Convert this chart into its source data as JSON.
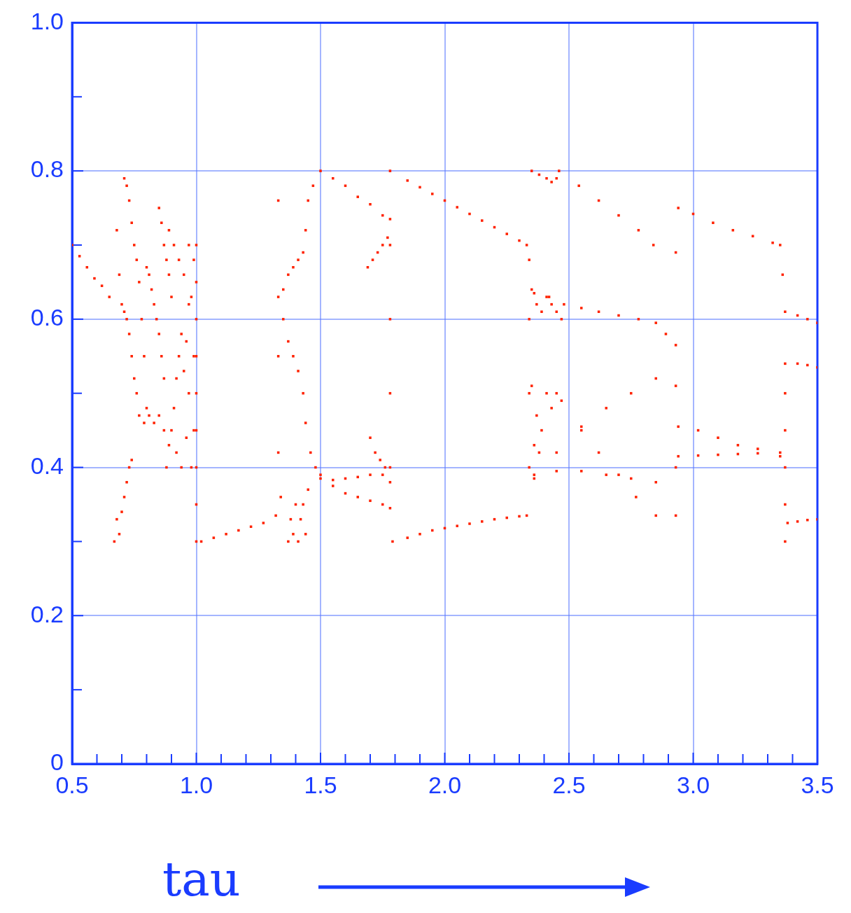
{
  "chart_data": {
    "type": "scatter",
    "xlabel": "tau",
    "color": "#ff2200",
    "marker": "square",
    "grid": true,
    "xlim": [
      0.5,
      3.5
    ],
    "ylim": [
      0,
      1
    ],
    "xticks": [
      0.5,
      {
        "value": 0.6,
        "label": null
      },
      {
        "value": 0.7,
        "label": null
      },
      {
        "value": 0.8,
        "label": null
      },
      {
        "value": 0.9,
        "label": null
      },
      {
        "value": 1,
        "label": "1.0"
      },
      {
        "value": 1.1,
        "label": null
      },
      {
        "value": 1.2,
        "label": null
      },
      {
        "value": 1.3,
        "label": null
      },
      {
        "value": 1.4,
        "label": null
      },
      1.5,
      {
        "value": 1.6,
        "label": null
      },
      {
        "value": 1.7,
        "label": null
      },
      {
        "value": 1.8,
        "label": null
      },
      {
        "value": 1.9,
        "label": null
      },
      {
        "value": 2,
        "label": "2.0"
      },
      {
        "value": 2.1,
        "label": null
      },
      {
        "value": 2.2,
        "label": null
      },
      {
        "value": 2.3,
        "label": null
      },
      {
        "value": 2.4,
        "label": null
      },
      2.5,
      {
        "value": 2.6,
        "label": null
      },
      {
        "value": 2.7,
        "label": null
      },
      {
        "value": 2.8,
        "label": null
      },
      {
        "value": 2.9,
        "label": null
      },
      {
        "value": 3,
        "label": "3.0"
      },
      {
        "value": 3.1,
        "label": null
      },
      {
        "value": 3.2,
        "label": null
      },
      {
        "value": 3.3,
        "label": null
      },
      {
        "value": 3.4,
        "label": null
      },
      3.5
    ],
    "yticks": [
      0,
      {
        "value": 0.1,
        "label": null
      },
      0.2,
      {
        "value": 0.3,
        "label": null
      },
      0.4,
      {
        "value": 0.5,
        "label": null
      },
      0.6,
      {
        "value": 0.7,
        "label": null
      },
      0.8,
      {
        "value": 0.9,
        "label": null
      },
      {
        "value": 1,
        "label": "1.0"
      }
    ],
    "x": [
      0.5,
      0.53,
      0.56,
      0.59,
      0.62,
      0.65,
      0.67,
      0.68,
      0.69,
      0.7,
      0.71,
      0.72,
      0.73,
      0.74,
      0.68,
      0.69,
      0.7,
      0.71,
      0.72,
      0.73,
      0.74,
      0.75,
      0.76,
      0.71,
      0.72,
      0.73,
      0.74,
      0.75,
      0.76,
      0.77,
      0.78,
      0.79,
      0.8,
      0.77,
      0.79,
      0.81,
      0.83,
      0.85,
      0.87,
      0.8,
      0.81,
      0.82,
      0.83,
      0.84,
      0.85,
      0.86,
      0.87,
      0.85,
      0.86,
      0.87,
      0.88,
      0.89,
      0.9,
      0.88,
      0.89,
      0.9,
      0.91,
      0.92,
      0.93,
      0.94,
      0.89,
      0.91,
      0.93,
      0.95,
      0.97,
      0.92,
      0.94,
      0.96,
      0.97,
      0.98,
      0.95,
      0.96,
      0.98,
      0.99,
      0.97,
      0.99,
      0.99,
      1,
      1,
      1,
      1,
      1,
      1,
      1,
      1,
      1,
      1.02,
      1.07,
      1.12,
      1.17,
      1.22,
      1.27,
      1.32,
      1.33,
      1.33,
      1.33,
      1.34,
      1.33,
      1.35,
      1.37,
      1.39,
      1.41,
      1.43,
      1.44,
      1.45,
      1.47,
      1.35,
      1.37,
      1.39,
      1.41,
      1.43,
      1.44,
      1.46,
      1.48,
      1.37,
      1.38,
      1.39,
      1.4,
      1.41,
      1.42,
      1.43,
      1.44,
      1.45,
      1.5,
      1.55,
      1.6,
      1.65,
      1.7,
      1.75,
      1.78,
      1.5,
      1.55,
      1.6,
      1.65,
      1.7,
      1.75,
      1.5,
      1.55,
      1.6,
      1.65,
      1.7,
      1.75,
      1.78,
      1.69,
      1.71,
      1.73,
      1.75,
      1.77,
      1.7,
      1.72,
      1.74,
      1.76,
      1.78,
      1.78,
      1.78,
      1.78,
      1.78,
      1.78,
      1.85,
      1.9,
      1.95,
      2,
      2.05,
      2.1,
      2.15,
      2.2,
      2.25,
      2.3,
      2.33,
      1.79,
      1.85,
      1.9,
      1.95,
      2,
      2.05,
      2.1,
      2.15,
      2.2,
      2.25,
      2.3,
      2.33,
      2.34,
      2.34,
      2.34,
      2.34,
      2.35,
      2.38,
      2.41,
      2.43,
      2.45,
      2.35,
      2.37,
      2.39,
      2.41,
      2.43,
      2.45,
      2.47,
      2.35,
      2.37,
      2.39,
      2.41,
      2.43,
      2.45,
      2.36,
      2.38,
      2.46,
      2.54,
      2.62,
      2.7,
      2.78,
      2.84,
      2.93,
      2.36,
      2.42,
      2.48,
      2.55,
      2.62,
      2.7,
      2.78,
      2.85,
      2.89,
      2.93,
      2.36,
      2.45,
      2.55,
      2.65,
      2.75,
      2.85,
      2.93,
      2.36,
      2.45,
      2.55,
      2.65,
      2.75,
      2.85,
      2.93,
      2.47,
      2.55,
      2.62,
      2.7,
      2.77,
      2.85,
      2.93,
      2.94,
      3,
      3.08,
      3.16,
      3.24,
      3.32,
      3.35,
      3.36,
      3.37,
      3.42,
      3.46,
      3.5,
      2.94,
      3.02,
      3.1,
      3.18,
      3.26,
      3.35,
      2.94,
      3.02,
      3.1,
      3.18,
      3.26,
      3.35,
      3.37,
      3.37,
      3.37,
      3.37,
      3.37,
      3.37,
      3.42,
      3.46,
      3.5,
      3.38,
      3.42,
      3.46,
      3.5
    ],
    "values": [
      0.7,
      0.685,
      0.67,
      0.655,
      0.645,
      0.63,
      0.3,
      0.33,
      0.31,
      0.34,
      0.36,
      0.38,
      0.4,
      0.41,
      0.72,
      0.66,
      0.62,
      0.61,
      0.6,
      0.58,
      0.55,
      0.52,
      0.5,
      0.79,
      0.78,
      0.76,
      0.73,
      0.7,
      0.68,
      0.65,
      0.6,
      0.55,
      0.48,
      0.47,
      0.46,
      0.47,
      0.46,
      0.47,
      0.45,
      0.67,
      0.66,
      0.64,
      0.62,
      0.6,
      0.58,
      0.55,
      0.52,
      0.75,
      0.73,
      0.7,
      0.68,
      0.66,
      0.63,
      0.4,
      0.43,
      0.45,
      0.48,
      0.52,
      0.55,
      0.58,
      0.72,
      0.7,
      0.68,
      0.66,
      0.62,
      0.42,
      0.4,
      0.44,
      0.5,
      0.4,
      0.53,
      0.57,
      0.63,
      0.68,
      0.7,
      0.45,
      0.55,
      0.3,
      0.35,
      0.4,
      0.45,
      0.5,
      0.55,
      0.6,
      0.65,
      0.7,
      0.3,
      0.305,
      0.31,
      0.315,
      0.32,
      0.325,
      0.335,
      0.76,
      0.55,
      0.42,
      0.36,
      0.63,
      0.64,
      0.66,
      0.67,
      0.68,
      0.69,
      0.72,
      0.76,
      0.78,
      0.6,
      0.57,
      0.55,
      0.53,
      0.5,
      0.46,
      0.42,
      0.4,
      0.3,
      0.33,
      0.31,
      0.35,
      0.3,
      0.33,
      0.35,
      0.31,
      0.37,
      0.8,
      0.79,
      0.78,
      0.765,
      0.755,
      0.74,
      0.735,
      0.385,
      0.383,
      0.385,
      0.387,
      0.39,
      0.39,
      0.39,
      0.375,
      0.365,
      0.36,
      0.355,
      0.35,
      0.345,
      0.67,
      0.68,
      0.69,
      0.7,
      0.71,
      0.44,
      0.42,
      0.41,
      0.4,
      0.38,
      0.4,
      0.5,
      0.6,
      0.7,
      0.8,
      0.787,
      0.778,
      0.769,
      0.76,
      0.751,
      0.742,
      0.733,
      0.724,
      0.715,
      0.706,
      0.7,
      0.3,
      0.305,
      0.31,
      0.315,
      0.318,
      0.321,
      0.324,
      0.327,
      0.33,
      0.332,
      0.334,
      0.335,
      0.4,
      0.5,
      0.6,
      0.68,
      0.8,
      0.795,
      0.79,
      0.785,
      0.79,
      0.64,
      0.62,
      0.61,
      0.63,
      0.62,
      0.61,
      0.6,
      0.51,
      0.47,
      0.45,
      0.5,
      0.48,
      0.5,
      0.43,
      0.42,
      0.8,
      0.78,
      0.76,
      0.74,
      0.72,
      0.7,
      0.69,
      0.635,
      0.63,
      0.62,
      0.615,
      0.61,
      0.605,
      0.6,
      0.595,
      0.58,
      0.565,
      0.39,
      0.42,
      0.455,
      0.48,
      0.5,
      0.52,
      0.51,
      0.385,
      0.395,
      0.395,
      0.39,
      0.385,
      0.38,
      0.4,
      0.49,
      0.45,
      0.42,
      0.39,
      0.36,
      0.335,
      0.335,
      0.75,
      0.742,
      0.73,
      0.72,
      0.712,
      0.703,
      0.7,
      0.66,
      0.61,
      0.605,
      0.6,
      0.595,
      0.455,
      0.45,
      0.44,
      0.43,
      0.425,
      0.415,
      0.415,
      0.416,
      0.417,
      0.418,
      0.419,
      0.42,
      0.3,
      0.35,
      0.4,
      0.45,
      0.5,
      0.54,
      0.54,
      0.538,
      0.535,
      0.325,
      0.327,
      0.329,
      0.33
    ]
  }
}
